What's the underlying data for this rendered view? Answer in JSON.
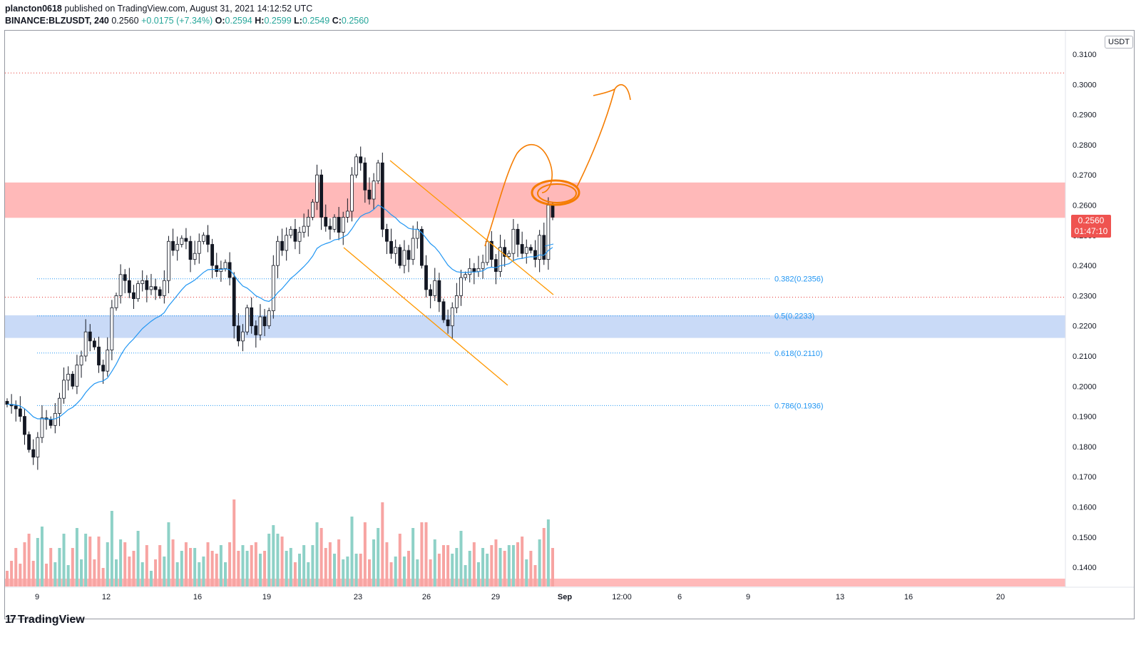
{
  "header": {
    "author": "plancton0618",
    "published_text": "published on TradingView.com, August 31, 2021 14:12:52 UTC",
    "symbol": "BINANCE:BLZUSDT, 240",
    "last": "0.2560",
    "change": "+0.0175 (+7.34%)",
    "o_label": "O:",
    "o_value": "0.2594",
    "h_label": "H:",
    "h_value": "0.2599",
    "l_label": "L:",
    "l_value": "0.2549",
    "c_label": "C:",
    "c_value": "0.2560"
  },
  "axis": {
    "currency": "USDT",
    "price_labels": [
      "0.3100",
      "0.3000",
      "0.2900",
      "0.2800",
      "0.2700",
      "0.2600",
      "0.2500",
      "0.2400",
      "0.2300",
      "0.2200",
      "0.2100",
      "0.2000",
      "0.1900",
      "0.1800",
      "0.1700",
      "0.1600",
      "0.1500",
      "0.1400"
    ],
    "date_labels": [
      "9",
      "12",
      "16",
      "19",
      "23",
      "26",
      "29",
      "Sep",
      "12:00",
      "6",
      "9",
      "13",
      "16",
      "20"
    ]
  },
  "price_tag": {
    "price": "0.2560",
    "countdown": "01:47:10"
  },
  "fib_labels": [
    "0.382(0.2356)",
    "0.5(0.2233)",
    "0.618(0.2110)",
    "0.786(0.1936)"
  ],
  "brand": {
    "name": "TradingView",
    "logo_mark": "17"
  },
  "colors": {
    "up": "#26a69a",
    "down": "#ef5350",
    "candle_up": "#ffffff",
    "candle_down": "#131722",
    "resistance_zone": "#ffb9b9",
    "support_zone": "#c9daf7",
    "ema": "#2196f3",
    "channel": "#ff9800",
    "drawing": "#f57c00",
    "fib": "#2196f3",
    "red_line": "#e53935"
  },
  "chart_data": {
    "type": "candlestick",
    "symbol": "BLZUSDT",
    "timeframe": "240",
    "y_range": [
      0.134,
      0.316
    ],
    "resistance_zone": [
      0.2558,
      0.2675
    ],
    "support_zone": [
      0.216,
      0.2235
    ],
    "horizontal_lines": [
      0.3038,
      0.2295
    ],
    "fib_levels": [
      {
        "ratio": "0.382",
        "price": 0.2356
      },
      {
        "ratio": "0.5",
        "price": 0.2233
      },
      {
        "ratio": "0.618",
        "price": 0.211
      },
      {
        "ratio": "0.786",
        "price": 0.1936
      }
    ],
    "closes": [
      0.194,
      0.1935,
      0.1925,
      0.19,
      0.184,
      0.179,
      0.1765,
      0.183,
      0.1895,
      0.189,
      0.187,
      0.191,
      0.196,
      0.202,
      0.204,
      0.2,
      0.207,
      0.21,
      0.218,
      0.215,
      0.213,
      0.207,
      0.205,
      0.212,
      0.226,
      0.23,
      0.237,
      0.235,
      0.231,
      0.229,
      0.234,
      0.235,
      0.232,
      0.233,
      0.232,
      0.23,
      0.235,
      0.248,
      0.245,
      0.247,
      0.249,
      0.248,
      0.242,
      0.244,
      0.248,
      0.25,
      0.247,
      0.24,
      0.238,
      0.239,
      0.241,
      0.236,
      0.22,
      0.215,
      0.218,
      0.226,
      0.22,
      0.217,
      0.223,
      0.22,
      0.225,
      0.24,
      0.248,
      0.245,
      0.25,
      0.252,
      0.248,
      0.251,
      0.253,
      0.256,
      0.261,
      0.27,
      0.256,
      0.253,
      0.252,
      0.256,
      0.251,
      0.256,
      0.258,
      0.27,
      0.276,
      0.274,
      0.265,
      0.262,
      0.268,
      0.274,
      0.252,
      0.248,
      0.244,
      0.246,
      0.24,
      0.245,
      0.242,
      0.249,
      0.252,
      0.24,
      0.232,
      0.23,
      0.235,
      0.228,
      0.222,
      0.22,
      0.226,
      0.23,
      0.236,
      0.237,
      0.239,
      0.238,
      0.239,
      0.241,
      0.248,
      0.242,
      0.238,
      0.246,
      0.243,
      0.244,
      0.252,
      0.247,
      0.244,
      0.246,
      0.245,
      0.242,
      0.25,
      0.242,
      0.26,
      0.256
    ],
    "volume_scale_note": "relative volume bars at bottom, colored by candle direction"
  }
}
